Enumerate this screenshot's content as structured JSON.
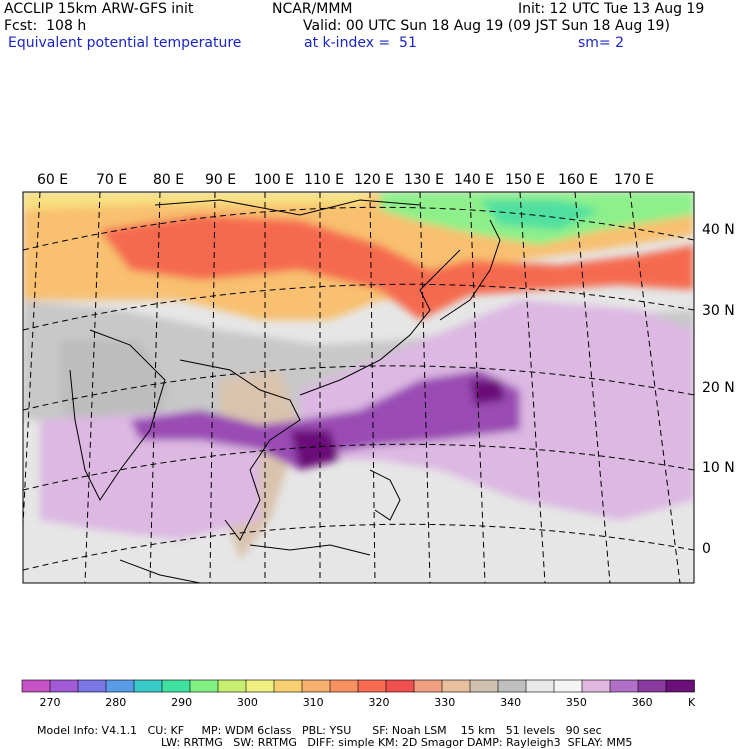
{
  "header": {
    "model_line": "ACCLIP 15km ARW-GFS init",
    "forecast_line": "Fcst:  108 h",
    "field_name": "Equivalent potential temperature",
    "org": "NCAR/MMM",
    "init_line": "Init: 12 UTC Tue 13 Aug 19",
    "valid_line": "Valid: 00 UTC Sun 18 Aug 19 (09 JST Sun 18 Aug 19)",
    "level_line": "at k-index =  51",
    "smoothing": "sm= 2"
  },
  "map": {
    "longitude_labels": [
      "60 E",
      "70 E",
      "80 E",
      "90 E",
      "100 E",
      "110 E",
      "120 E",
      "130 E",
      "140 E",
      "150 E",
      "160 E",
      "170 E"
    ],
    "latitude_labels": [
      "40 N",
      "30 N",
      "20 N",
      "10 N",
      "0"
    ]
  },
  "colorbar": {
    "unit": "K",
    "tick_labels": [
      "270",
      "280",
      "290",
      "300",
      "310",
      "320",
      "330",
      "340",
      "350",
      "360"
    ],
    "colors": [
      "#c653c6",
      "#a35ad6",
      "#7a78e6",
      "#5a9be8",
      "#38c9c9",
      "#40e0a0",
      "#80f080",
      "#c8f070",
      "#f0f080",
      "#f8d070",
      "#f8b070",
      "#f89060",
      "#f86a50",
      "#f05050",
      "#f0a080",
      "#e8c0a0",
      "#d0c0b0",
      "#c0c0c0",
      "#e8e8e8",
      "#f4f4f4",
      "#e0b8e0",
      "#b070c8",
      "#8a3a9e",
      "#6a1078"
    ]
  },
  "footer": {
    "line1": [
      "Model Info: V4.1.1",
      "CU: KF",
      "MP: WDM 6class",
      "PBL: YSU",
      "SF: Noah LSM",
      "15 km",
      "51 levels",
      "90 sec"
    ],
    "line2": [
      "LW: RRTMG",
      "SW: RRTMG",
      "DIFF: simple",
      "KM: 2D Smagor",
      "DAMP: Rayleigh3",
      "SFLAY: MM5"
    ]
  }
}
